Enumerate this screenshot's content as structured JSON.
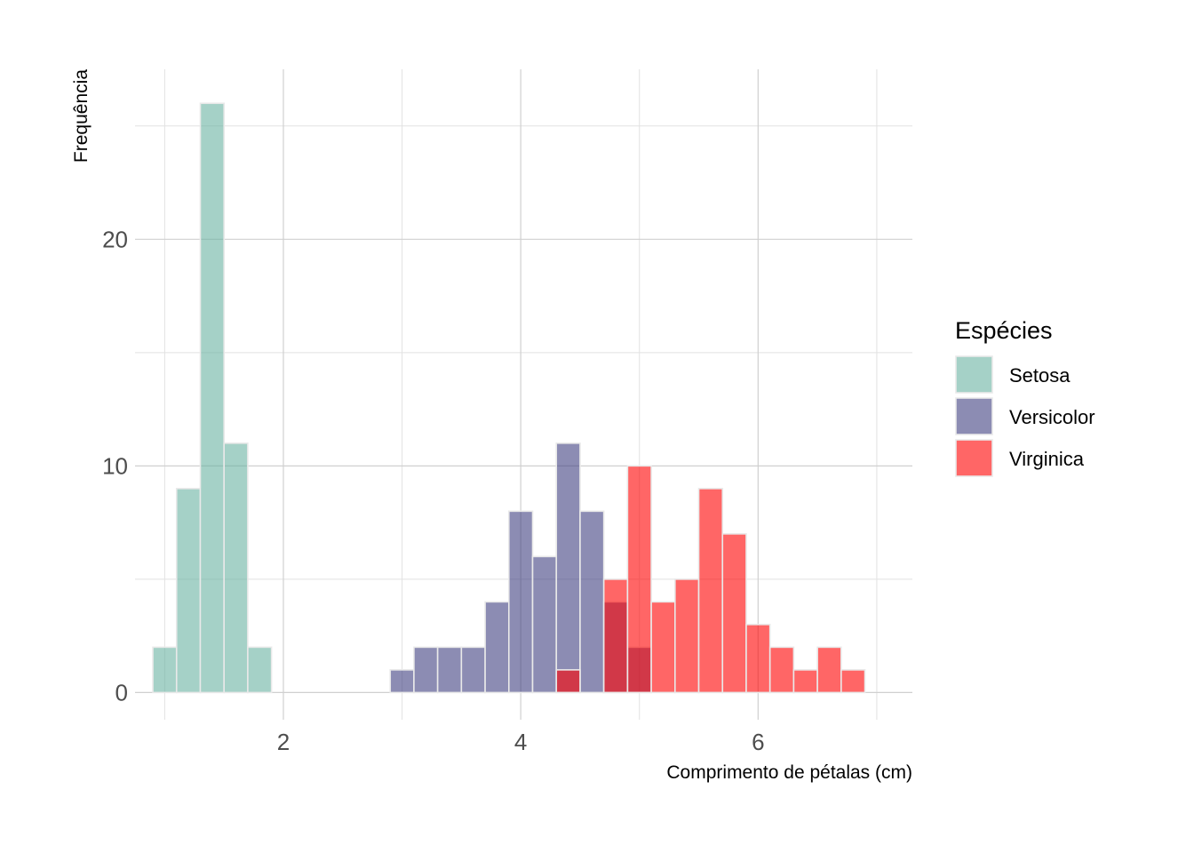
{
  "chart_data": {
    "type": "bar",
    "subtype": "histogram-overlay",
    "xlabel": "Comprimento de pétalas (cm)",
    "ylabel": "Frequência",
    "xlim": [
      0.75,
      7.3
    ],
    "ylim": [
      -1.2,
      27.5
    ],
    "x_ticks": [
      2,
      4,
      6
    ],
    "y_ticks": [
      0,
      10,
      20
    ],
    "bin_width": 0.2,
    "grid": "on",
    "legend": {
      "title": "Espécies",
      "placement": "right"
    },
    "series": [
      {
        "name": "Setosa",
        "color": "#69b3a2",
        "bin_centers": [
          1.0,
          1.2,
          1.4,
          1.6,
          1.8
        ],
        "counts": [
          2,
          9,
          26,
          11,
          2
        ]
      },
      {
        "name": "Versicolor",
        "color": "#404080",
        "bin_centers": [
          3.0,
          3.2,
          3.4,
          3.6,
          3.8,
          4.0,
          4.2,
          4.4,
          4.6,
          4.8,
          5.0
        ],
        "counts": [
          1,
          2,
          2,
          2,
          4,
          8,
          6,
          11,
          8,
          4,
          2
        ]
      },
      {
        "name": "Virginica",
        "color": "#ff0000",
        "bin_centers": [
          4.4,
          4.8,
          5.0,
          5.2,
          5.4,
          5.6,
          5.8,
          6.0,
          6.2,
          6.4,
          6.6,
          6.8
        ],
        "counts": [
          1,
          5,
          10,
          4,
          5,
          9,
          7,
          3,
          2,
          1,
          2,
          1
        ]
      }
    ]
  }
}
